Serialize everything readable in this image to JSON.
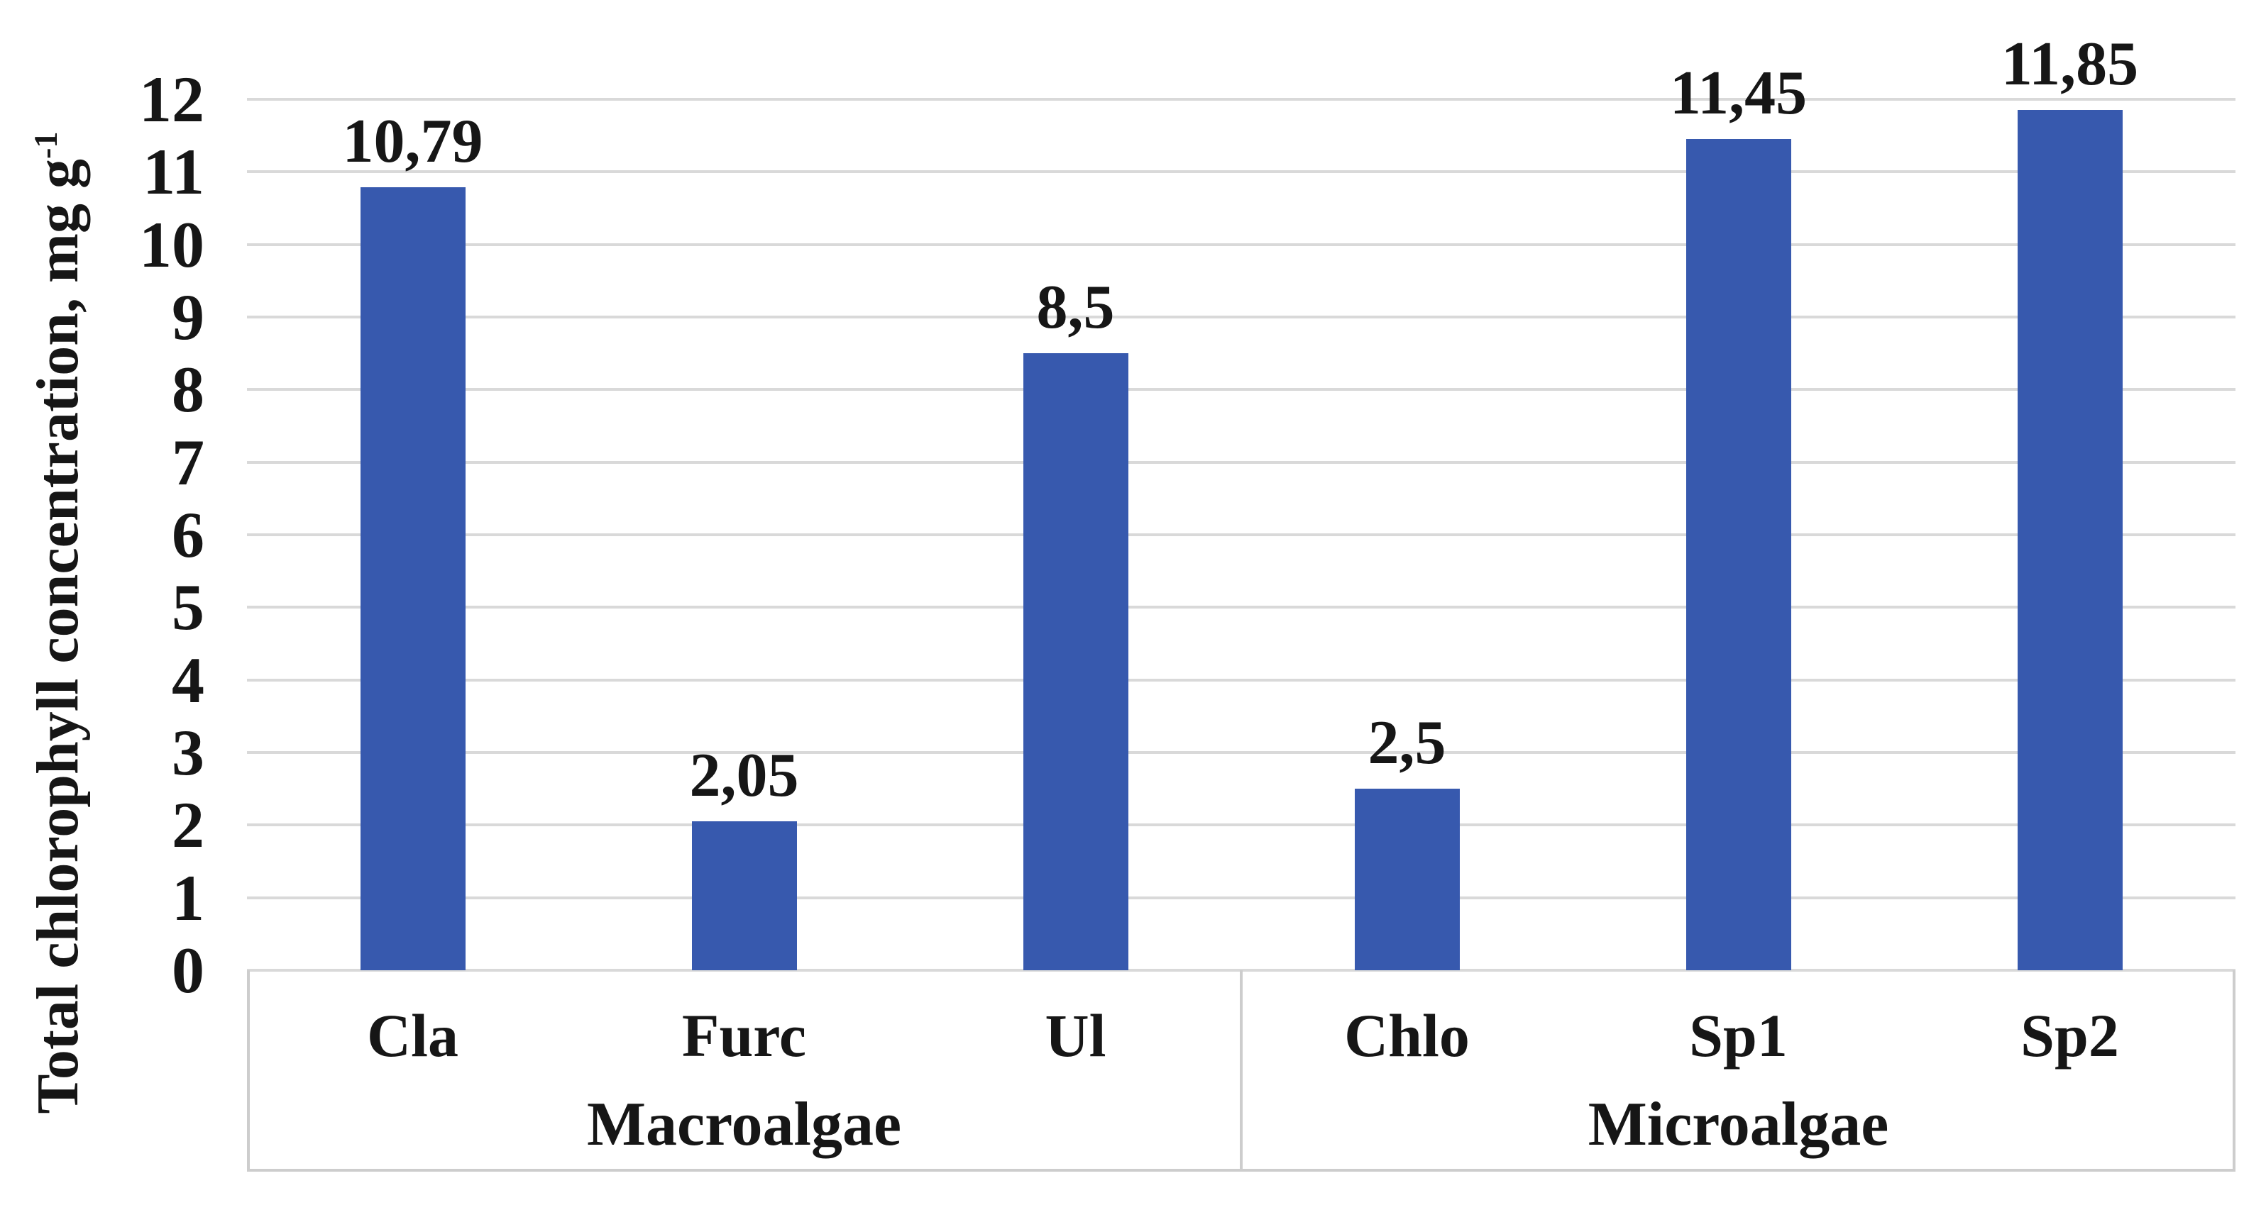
{
  "chart_data": {
    "type": "bar",
    "title": "",
    "ylabel_main": "Total chlorophyll concentration, mg g",
    "ylabel_sup": "-1",
    "xlabel": "",
    "categories": [
      "Cla",
      "Furc",
      "Ul",
      "Chlo",
      "Sp1",
      "Sp2"
    ],
    "values": [
      10.79,
      2.05,
      8.5,
      2.5,
      11.45,
      11.85
    ],
    "value_labels": [
      "10,79",
      "2,05",
      "8,5",
      "2,5",
      "11,45",
      "11,85"
    ],
    "groups": [
      {
        "label": "Macroalgae",
        "category_count": 3
      },
      {
        "label": "Microalgae",
        "category_count": 3
      }
    ],
    "ylim": [
      0,
      12
    ],
    "yticks": [
      0,
      1,
      2,
      3,
      4,
      5,
      6,
      7,
      8,
      9,
      10,
      11,
      12
    ],
    "grid": true,
    "legend_position": "none",
    "bar_color": "#3759ae",
    "gridline_color": "#d9d9d9",
    "axis_box_color": "#cdcdcd",
    "text_color": "#161616"
  }
}
